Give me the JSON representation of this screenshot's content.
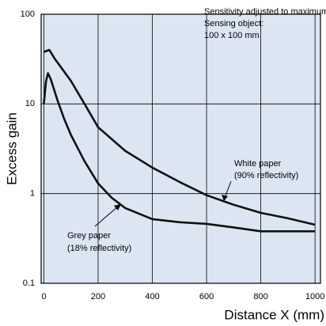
{
  "chart_data": {
    "type": "line",
    "x_label": "Distance X (mm)",
    "y_label": "Excess gain",
    "annotation": [
      "Sensitivity adjusted to maximum",
      "Sensing object:",
      "100 x 100 mm"
    ],
    "log_y": true,
    "grid": true,
    "background": "#dce6f2",
    "xlim": [
      -10,
      1020
    ],
    "xticks": [
      0,
      200,
      400,
      600,
      800,
      1000
    ],
    "ylim": [
      0.1,
      100
    ],
    "yticks": [
      0.1,
      1,
      10,
      100
    ],
    "series": [
      {
        "name": "White paper",
        "sublabel": "(90% reflectivity)",
        "color": "#111111",
        "x": [
          0,
          20,
          40,
          70,
          100,
          150,
          200,
          300,
          400,
          500,
          600,
          700,
          800,
          900,
          1000
        ],
        "values": [
          38,
          40,
          32,
          24,
          18,
          10,
          5.5,
          3,
          1.95,
          1.35,
          0.96,
          0.75,
          0.61,
          0.53,
          0.45
        ]
      },
      {
        "name": "Grey paper",
        "sublabel": "(18% reflectivity)",
        "color": "#111111",
        "x": [
          0,
          8,
          15,
          25,
          50,
          75,
          100,
          150,
          200,
          250,
          300,
          400,
          500,
          600,
          700,
          800,
          900,
          1000
        ],
        "values": [
          10,
          18,
          22,
          19,
          11,
          6.8,
          4.5,
          2.3,
          1.3,
          0.9,
          0.69,
          0.52,
          0.48,
          0.46,
          0.42,
          0.38,
          0.38,
          0.38
        ]
      }
    ]
  }
}
